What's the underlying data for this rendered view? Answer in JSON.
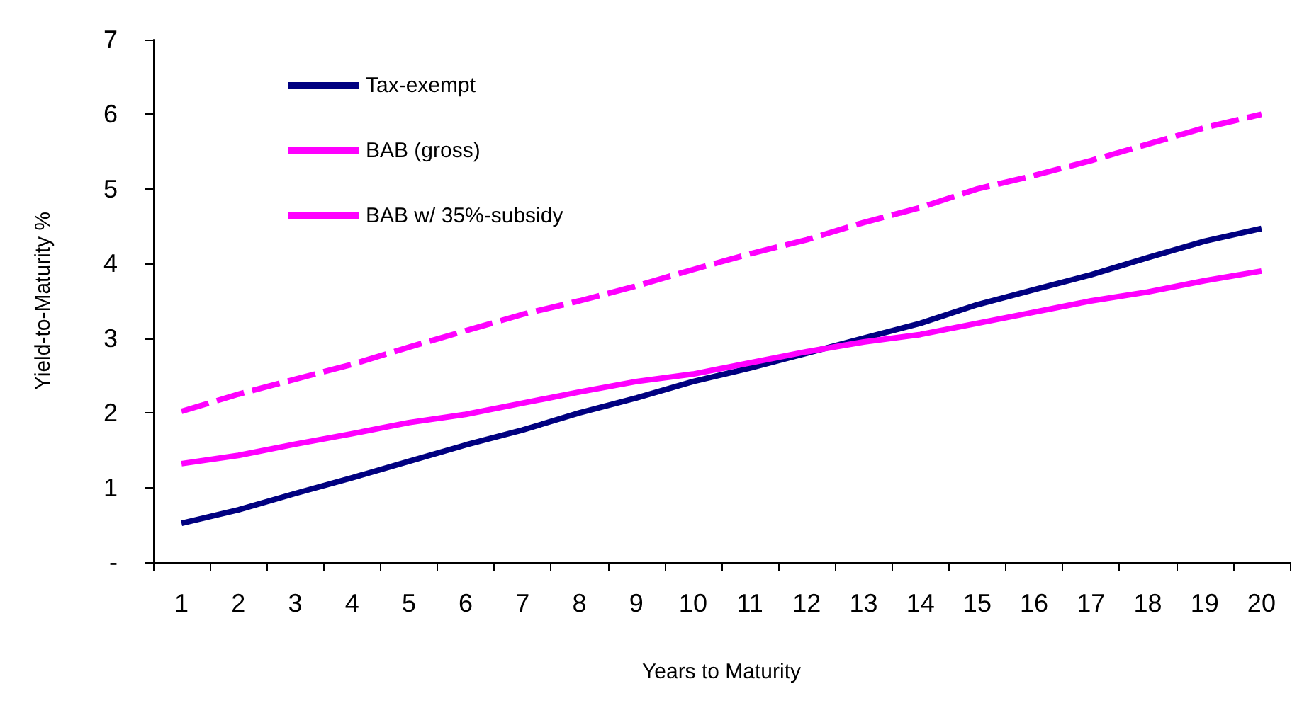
{
  "chart_data": {
    "type": "line",
    "xlabel": "Years to Maturity",
    "ylabel": "Yield-to-Maturity %",
    "categories": [
      "1",
      "2",
      "3",
      "4",
      "5",
      "6",
      "7",
      "8",
      "9",
      "10",
      "11",
      "12",
      "13",
      "14",
      "15",
      "16",
      "17",
      "18",
      "19",
      "20"
    ],
    "series": [
      {
        "name": "Tax-exempt",
        "color": "#000080",
        "line_style": "solid",
        "values": [
          0.52,
          0.7,
          0.92,
          1.13,
          1.35,
          1.57,
          1.77,
          2.0,
          2.2,
          2.42,
          2.6,
          2.8,
          3.0,
          3.2,
          3.45,
          3.65,
          3.85,
          4.08,
          4.3,
          4.47
        ]
      },
      {
        "name": "BAB (gross)",
        "color": "#ff00ff",
        "line_style": "dashed",
        "values": [
          2.02,
          2.25,
          2.45,
          2.65,
          2.88,
          3.1,
          3.32,
          3.5,
          3.7,
          3.92,
          4.13,
          4.32,
          4.55,
          4.75,
          5.0,
          5.18,
          5.38,
          5.6,
          5.82,
          6.0
        ]
      },
      {
        "name": "BAB w/ 35%-subsidy",
        "color": "#ff00ff",
        "line_style": "solid",
        "values": [
          1.32,
          1.43,
          1.58,
          1.72,
          1.87,
          1.98,
          2.13,
          2.28,
          2.42,
          2.52,
          2.67,
          2.82,
          2.95,
          3.05,
          3.2,
          3.35,
          3.5,
          3.62,
          3.77,
          3.9
        ]
      }
    ],
    "ylim": [
      0,
      7
    ],
    "yticks": [
      {
        "value": 0,
        "label": "-"
      },
      1,
      2,
      3,
      4,
      5,
      6,
      7
    ],
    "grid": false,
    "legend": "top left",
    "marker": "none"
  }
}
